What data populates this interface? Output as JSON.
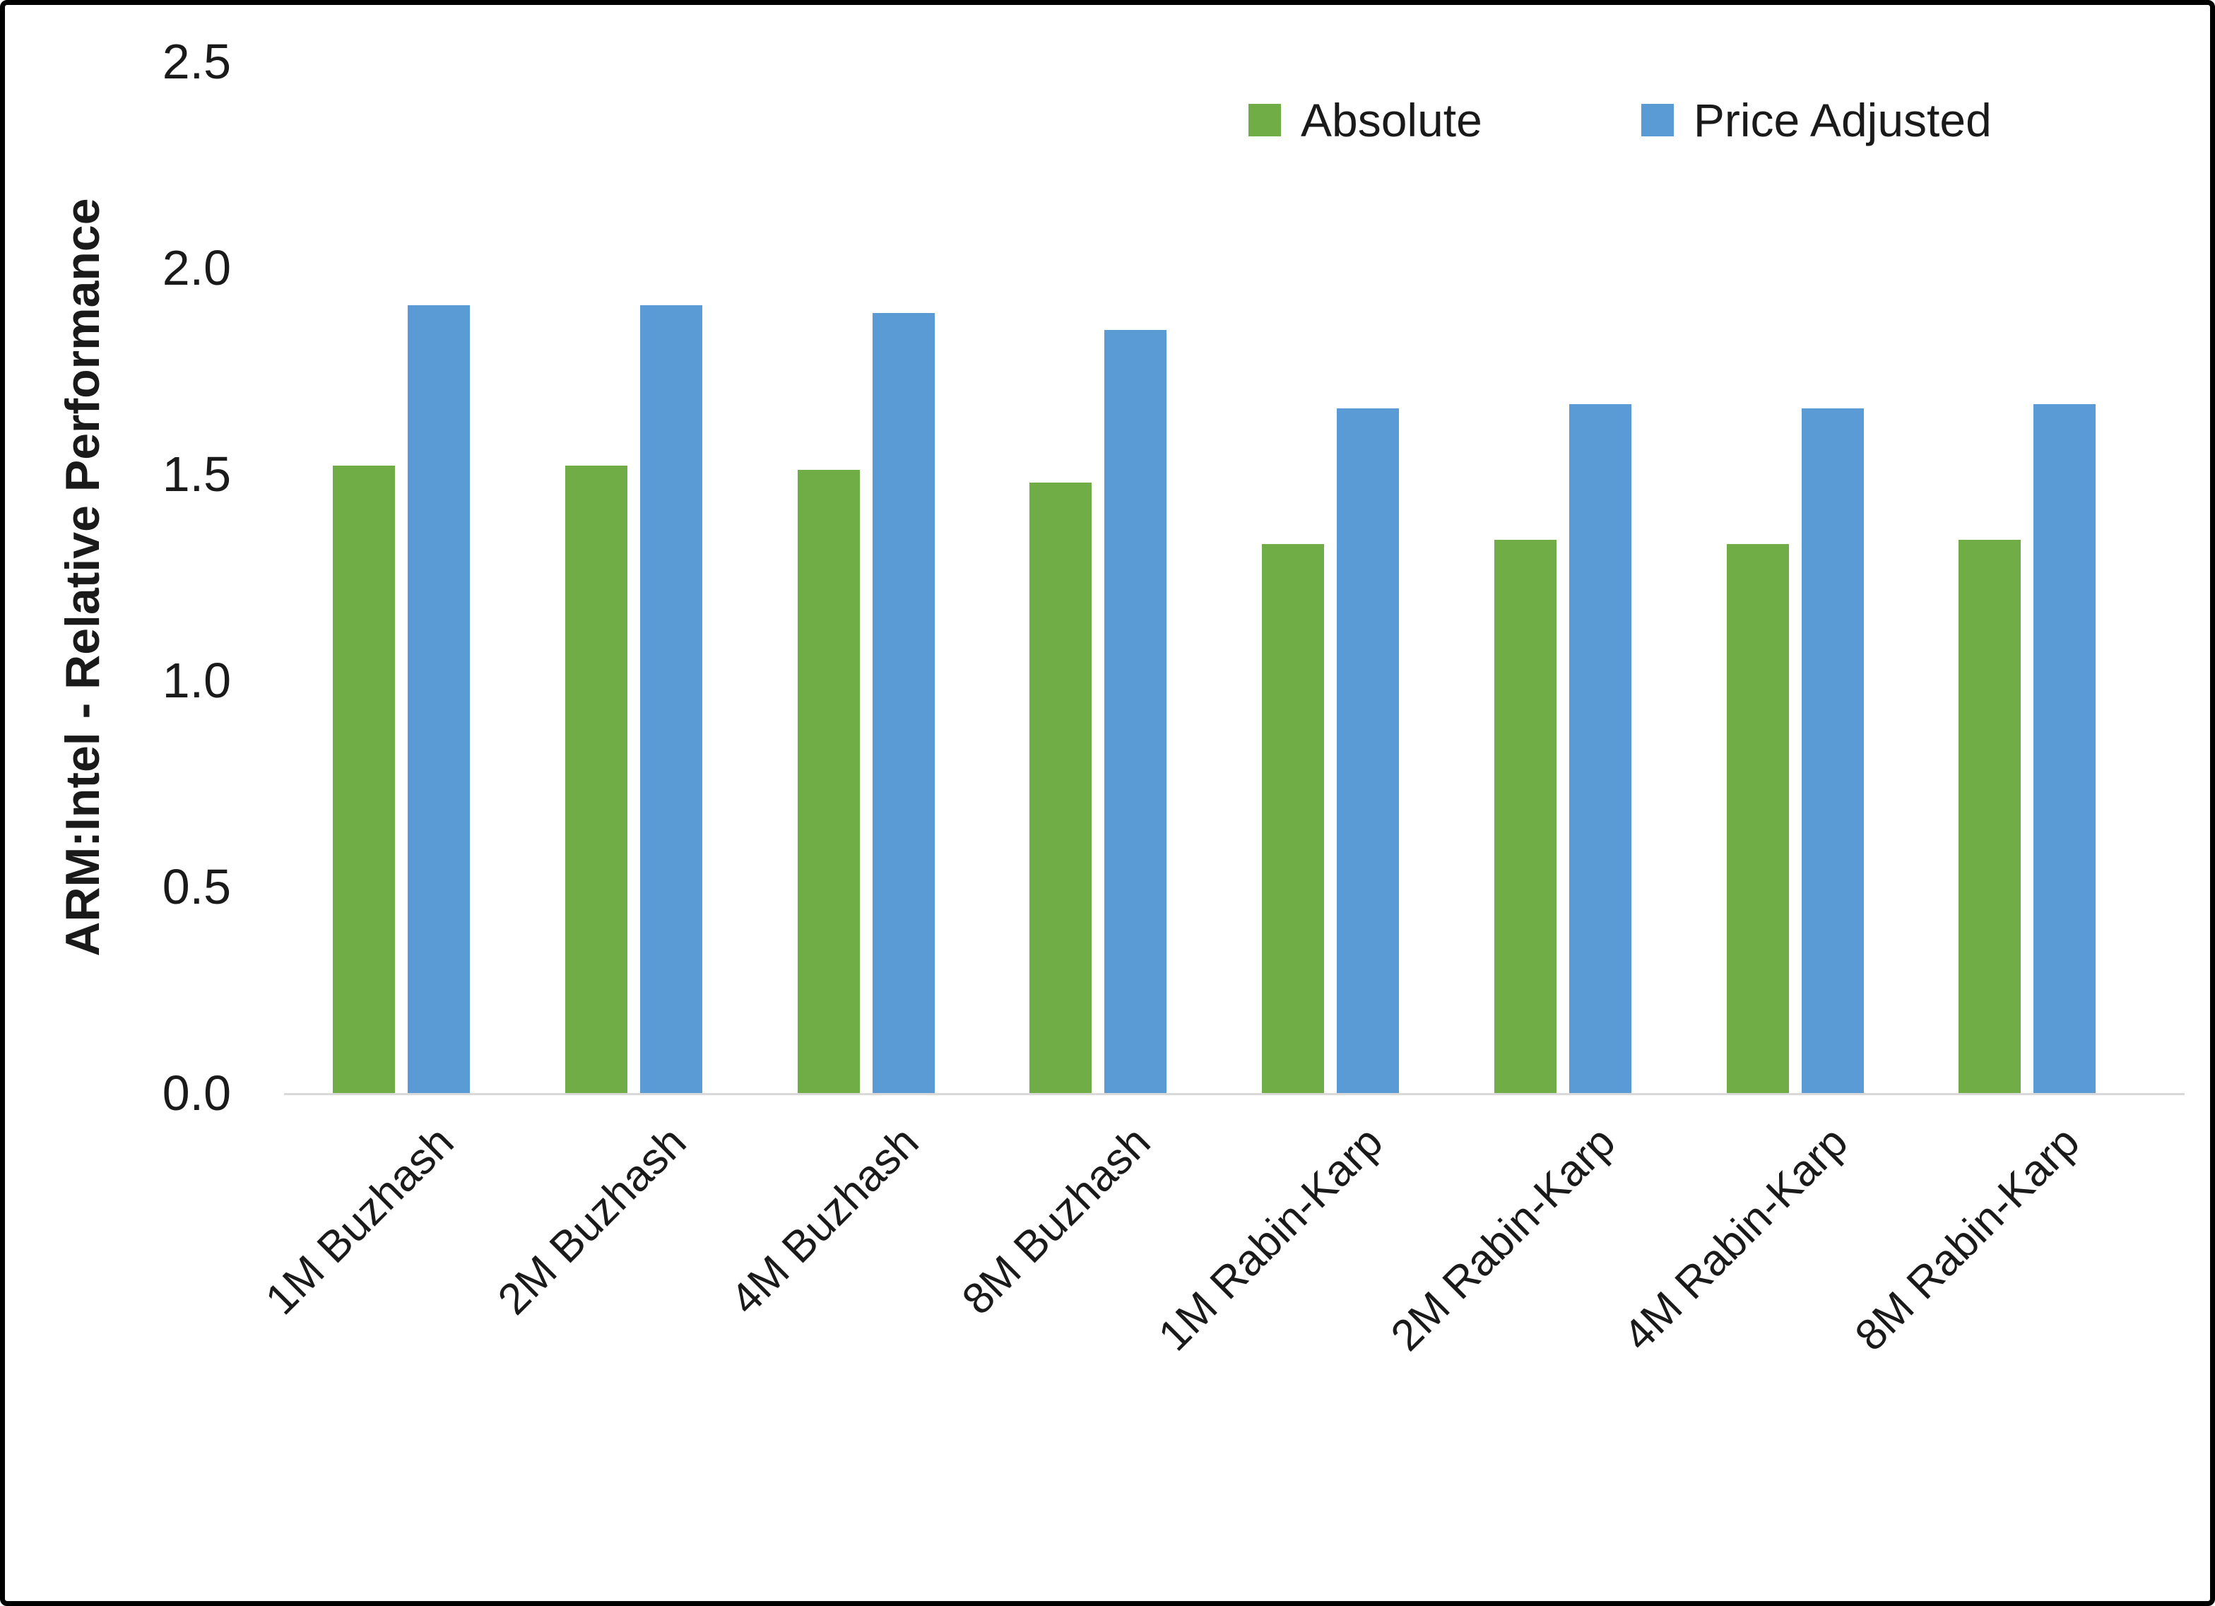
{
  "figure": {
    "ylabel": "ARM:Intel - Relative Performance"
  },
  "chart_data": {
    "type": "bar",
    "title": "",
    "xlabel": "",
    "ylabel": "ARM:Intel - Relative Performance",
    "categories": [
      "1M Buzhash",
      "2M Buzhash",
      "4M Buzhash",
      "8M Buzhash",
      "1M Rabin-Karp",
      "2M Rabin-Karp",
      "4M Rabin-Karp",
      "8M Rabin-Karp"
    ],
    "series": [
      {
        "name": "Absolute",
        "color": "#70AD47",
        "values": [
          1.52,
          1.52,
          1.51,
          1.48,
          1.33,
          1.34,
          1.33,
          1.34
        ]
      },
      {
        "name": "Price Adjusted",
        "color": "#5B9BD5",
        "values": [
          1.91,
          1.91,
          1.89,
          1.85,
          1.66,
          1.67,
          1.66,
          1.67
        ]
      }
    ],
    "ylim": [
      0,
      2.5
    ],
    "yticks": [
      "0.0",
      "0.5",
      "1.0",
      "1.5",
      "2.0",
      "2.5"
    ],
    "grid": false,
    "legend_position": "top-right",
    "background": "#ffffff"
  }
}
